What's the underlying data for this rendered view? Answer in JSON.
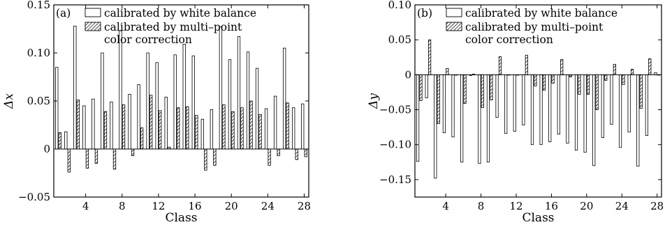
{
  "colors": {
    "white_bar_fill": "#ffffff",
    "bar_stroke": "#000000",
    "hatch_stroke": "#000000",
    "axis": "#000000"
  },
  "chart_data": [
    {
      "type": "bar",
      "panel_label": "(a)",
      "xlabel": "Class",
      "ylabel": "Δx",
      "ylim": [
        -0.05,
        0.15
      ],
      "yticks": [
        -0.05,
        0,
        0.05,
        0.1,
        0.15
      ],
      "ytick_labels": [
        "−0.05",
        "0",
        "0.05",
        "0.10",
        "0.15"
      ],
      "xticks": [
        4,
        8,
        12,
        16,
        20,
        24,
        28
      ],
      "grid": false,
      "legend_position": "top-left",
      "categories": [
        1,
        2,
        3,
        4,
        5,
        6,
        7,
        8,
        9,
        10,
        11,
        12,
        13,
        14,
        15,
        16,
        17,
        18,
        19,
        20,
        21,
        22,
        23,
        24,
        25,
        26,
        27,
        28
      ],
      "series": [
        {
          "name": "calibrated by white balance",
          "style": "plain",
          "values": [
            0.085,
            0.018,
            0.128,
            0.045,
            0.052,
            0.1,
            0.049,
            0.123,
            0.057,
            0.067,
            0.1,
            0.09,
            0.054,
            0.098,
            0.109,
            0.097,
            0.031,
            0.041,
            0.127,
            0.093,
            0.117,
            0.101,
            0.084,
            0.042,
            0.055,
            0.105,
            0.043,
            0.047
          ]
        },
        {
          "name": "calibrated by multi–point\ncolor correction",
          "style": "hatched",
          "values": [
            0.017,
            -0.024,
            0.051,
            -0.02,
            -0.015,
            0.039,
            -0.021,
            0.046,
            -0.007,
            0.022,
            0.056,
            0.04,
            0.002,
            0.043,
            0.044,
            0.035,
            -0.022,
            -0.017,
            0.046,
            0.039,
            0.043,
            0.05,
            0.036,
            -0.017,
            -0.007,
            0.048,
            -0.011,
            -0.008
          ]
        }
      ]
    },
    {
      "type": "bar",
      "panel_label": "(b)",
      "xlabel": "Class",
      "ylabel": "Δy",
      "ylim": [
        -0.175,
        0.1
      ],
      "yticks": [
        -0.15,
        -0.1,
        -0.05,
        0,
        0.05,
        0.1
      ],
      "ytick_labels": [
        "−0.15",
        "−0.10",
        "−0.05",
        "0",
        "0.05",
        "0.10"
      ],
      "xticks": [
        4,
        8,
        12,
        16,
        20,
        24,
        28
      ],
      "grid": false,
      "legend_position": "top-left",
      "categories": [
        1,
        2,
        3,
        4,
        5,
        6,
        7,
        8,
        9,
        10,
        11,
        12,
        13,
        14,
        15,
        16,
        17,
        18,
        19,
        20,
        21,
        22,
        23,
        24,
        25,
        26,
        27,
        28
      ],
      "series": [
        {
          "name": "calibrated by white balance",
          "style": "plain",
          "values": [
            -0.124,
            -0.033,
            -0.148,
            -0.083,
            -0.089,
            -0.125,
            -0.001,
            -0.127,
            -0.125,
            -0.061,
            -0.084,
            -0.081,
            -0.072,
            -0.1,
            -0.1,
            -0.096,
            -0.085,
            -0.098,
            -0.108,
            -0.111,
            -0.13,
            -0.09,
            -0.071,
            -0.104,
            -0.082,
            -0.131,
            -0.087,
            0.003
          ]
        },
        {
          "name": "calibrated by multi–point\ncolor correction",
          "style": "hatched",
          "values": [
            -0.037,
            0.05,
            -0.07,
            0.009,
            0.0,
            -0.041,
            0.001,
            -0.047,
            -0.036,
            0.026,
            0.0,
            0.0,
            0.028,
            -0.016,
            -0.022,
            -0.012,
            0.022,
            -0.003,
            -0.028,
            -0.028,
            -0.05,
            -0.008,
            0.015,
            -0.014,
            0.008,
            -0.048,
            0.023,
            0.0
          ]
        }
      ]
    }
  ]
}
